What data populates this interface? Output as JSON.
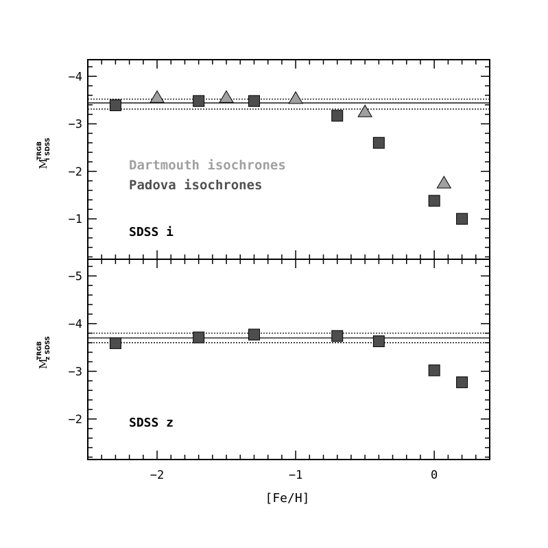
{
  "chart_data": [
    {
      "type": "scatter",
      "panel": "top",
      "band_label": "SDSS i",
      "ylabel": {
        "main": "M",
        "sup": "TRGB",
        "sub": "i SDSS"
      },
      "xlim": [
        -2.5,
        0.4
      ],
      "ylim": [
        -0.15,
        -4.35
      ],
      "yticks": [
        -4,
        -3,
        -2,
        -1
      ],
      "ytick_labels": [
        "−4",
        "−3",
        "−2",
        "−1"
      ],
      "hlines": [
        {
          "y": -3.44,
          "style": "solid"
        },
        {
          "y": -3.52,
          "style": "dotted"
        },
        {
          "y": -3.31,
          "style": "dotted"
        }
      ],
      "legend": [
        {
          "label": "Dartmouth isochrones",
          "color": "#a0a0a0"
        },
        {
          "label": "Padova isochrones",
          "color": "#505050"
        }
      ],
      "series": [
        {
          "name": "Dartmouth isochrones",
          "marker": "triangle",
          "color": "#a0a0a0",
          "points": [
            {
              "x": -2.0,
              "y": -3.55
            },
            {
              "x": -1.5,
              "y": -3.55
            },
            {
              "x": -1.0,
              "y": -3.53
            },
            {
              "x": -0.5,
              "y": -3.25
            },
            {
              "x": 0.07,
              "y": -1.75
            }
          ]
        },
        {
          "name": "Padova isochrones",
          "marker": "square",
          "color": "#4d4d4d",
          "points": [
            {
              "x": -2.3,
              "y": -3.39
            },
            {
              "x": -1.7,
              "y": -3.48
            },
            {
              "x": -1.3,
              "y": -3.48
            },
            {
              "x": -0.7,
              "y": -3.17
            },
            {
              "x": -0.4,
              "y": -2.6
            },
            {
              "x": 0.0,
              "y": -1.38
            },
            {
              "x": 0.2,
              "y": -1.0
            }
          ]
        }
      ]
    },
    {
      "type": "scatter",
      "panel": "bottom",
      "band_label": "SDSS z",
      "ylabel": {
        "main": "M",
        "sup": "TRGB",
        "sub": "z SDSS"
      },
      "xlim": [
        -2.5,
        0.4
      ],
      "ylim": [
        -1.15,
        -5.35
      ],
      "yticks": [
        -5,
        -4,
        -3,
        -2
      ],
      "ytick_labels": [
        "−5",
        "−4",
        "−3",
        "−2"
      ],
      "xticks": [
        -2,
        -1,
        0
      ],
      "xtick_labels": [
        "−2",
        "−1",
        "0"
      ],
      "xlabel": "[Fe/H]",
      "hlines": [
        {
          "y": -3.7,
          "style": "solid"
        },
        {
          "y": -3.8,
          "style": "dotted"
        },
        {
          "y": -3.6,
          "style": "dotted"
        }
      ],
      "series": [
        {
          "name": "Padova isochrones",
          "marker": "square",
          "color": "#4d4d4d",
          "points": [
            {
              "x": -2.3,
              "y": -3.59
            },
            {
              "x": -1.7,
              "y": -3.71
            },
            {
              "x": -1.3,
              "y": -3.77
            },
            {
              "x": -0.7,
              "y": -3.74
            },
            {
              "x": -0.4,
              "y": -3.63
            },
            {
              "x": 0.0,
              "y": -3.02
            },
            {
              "x": 0.2,
              "y": -2.77
            }
          ]
        }
      ]
    }
  ]
}
